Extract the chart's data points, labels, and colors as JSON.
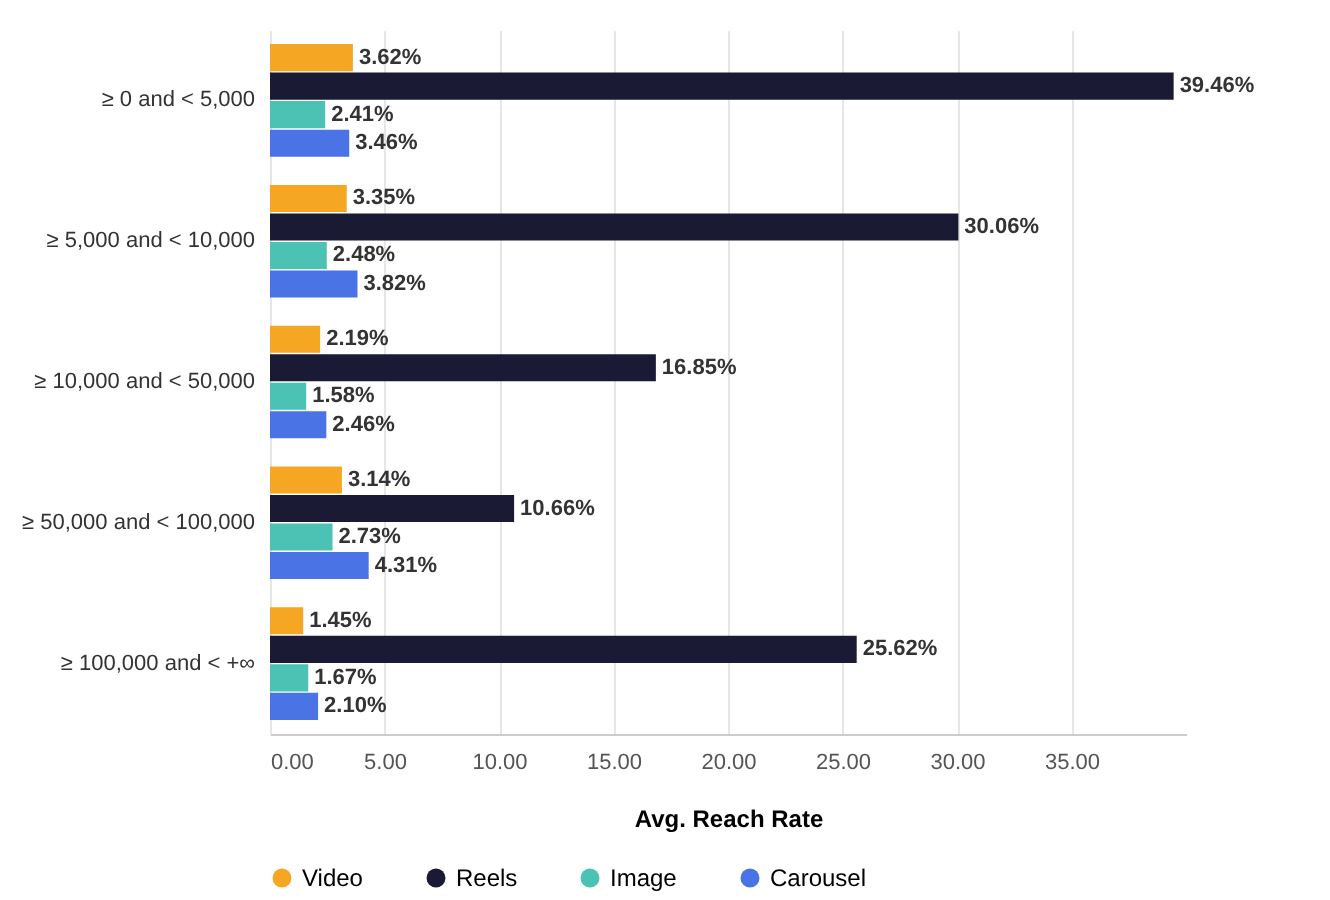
{
  "chart_data": {
    "type": "bar",
    "orientation": "horizontal",
    "xlabel": "Avg. Reach Rate",
    "categories": [
      "≥ 0 and < 5,000",
      "≥ 5,000 and < 10,000",
      "≥ 10,000 and < 50,000",
      "≥ 50,000 and < 100,000",
      "≥ 100,000 and < +∞"
    ],
    "series": [
      {
        "name": "Video",
        "color": "#f5a623",
        "values": [
          3.62,
          3.35,
          2.19,
          3.14,
          1.45
        ],
        "value_labels": [
          "3.62%",
          "3.35%",
          "2.19%",
          "3.14%",
          "1.45%"
        ]
      },
      {
        "name": "Reels",
        "color": "#1b1a35",
        "values": [
          39.46,
          30.06,
          16.85,
          10.66,
          25.62
        ],
        "value_labels": [
          "39.46%",
          "30.06%",
          "16.85%",
          "10.66%",
          "25.62%"
        ]
      },
      {
        "name": "Image",
        "color": "#4cc2b4",
        "values": [
          2.41,
          2.48,
          1.58,
          2.73,
          1.67
        ],
        "value_labels": [
          "2.41%",
          "2.48%",
          "1.58%",
          "2.73%",
          "1.67%"
        ]
      },
      {
        "name": "Carousel",
        "color": "#4a74e6",
        "values": [
          3.46,
          3.82,
          2.46,
          4.31,
          2.1
        ],
        "value_labels": [
          "3.46%",
          "3.82%",
          "2.46%",
          "4.31%",
          "2.10%"
        ]
      }
    ],
    "xlim": [
      0,
      40
    ],
    "xticks": [
      {
        "value": 0,
        "label": "0.00"
      },
      {
        "value": 5,
        "label": "5.00"
      },
      {
        "value": 10,
        "label": "10.00"
      },
      {
        "value": 15,
        "label": "15.00"
      },
      {
        "value": 20,
        "label": "20.00"
      },
      {
        "value": 25,
        "label": "25.00"
      },
      {
        "value": 30,
        "label": "30.00"
      },
      {
        "value": 35,
        "label": "35.00"
      }
    ],
    "grid": "x",
    "legend": "bottom"
  }
}
